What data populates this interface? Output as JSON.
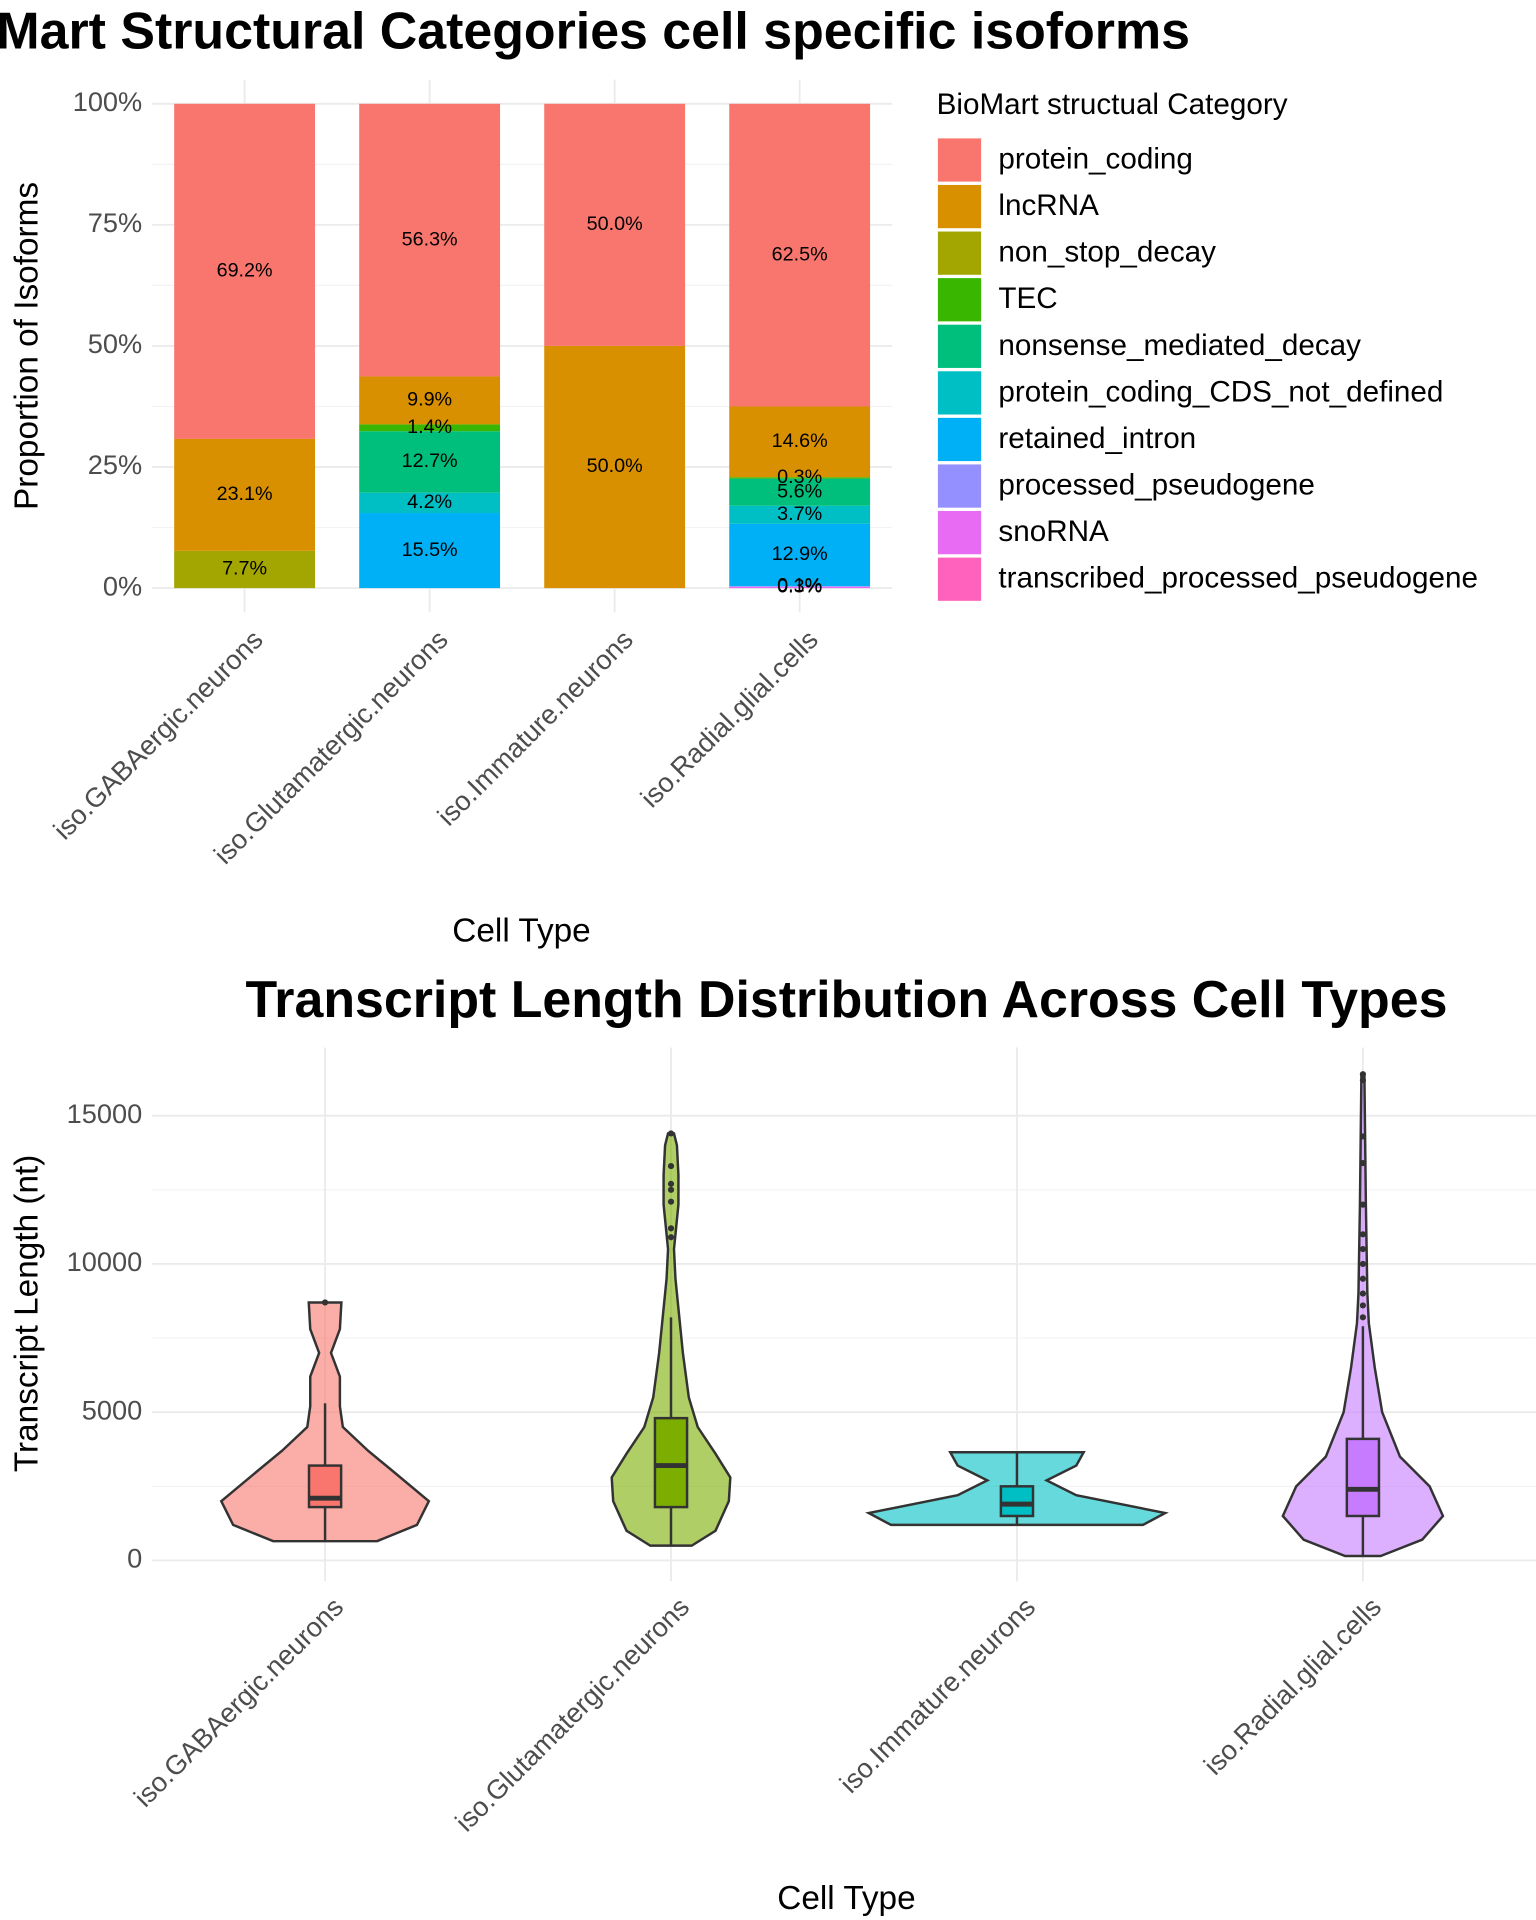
{
  "chart_data": [
    {
      "type": "stacked_bar",
      "title": "BioMart Structural Categories cell specific isoforms",
      "x_label": "Cell Type",
      "y_label": "Proportion of Isoforms",
      "legend_title": "BioMart structual Category",
      "legend_position": "right",
      "grid": true,
      "categories": [
        "iso.GABAergic.neurons",
        "iso.Glutamatergic.neurons",
        "iso.Immature.neurons",
        "iso.Radial.glial.cells"
      ],
      "ylim": [
        -5,
        105
      ],
      "yticks": [
        {
          "value": 0,
          "label": "0%"
        },
        {
          "value": 25,
          "label": "25%"
        },
        {
          "value": 50,
          "label": "50%"
        },
        {
          "value": 75,
          "label": "75%"
        },
        {
          "value": 100,
          "label": "100%"
        }
      ],
      "series": [
        {
          "name": "protein_coding",
          "color": "#F8766D",
          "values": [
            69.2,
            56.3,
            50.0,
            62.5
          ],
          "value_labels": [
            "69.2%",
            "56.3%",
            "50.0%",
            "62.5%"
          ]
        },
        {
          "name": "lncRNA",
          "color": "#D89000",
          "values": [
            23.1,
            9.9,
            50.0,
            14.6
          ],
          "value_labels": [
            "23.1%",
            "9.9%",
            "50.0%",
            "14.6%"
          ]
        },
        {
          "name": "non_stop_decay",
          "color": "#A3A500",
          "values": [
            7.7,
            null,
            null,
            null
          ],
          "value_labels": [
            "7.7%",
            null,
            null,
            null
          ]
        },
        {
          "name": "TEC",
          "color": "#39B600",
          "values": [
            null,
            1.4,
            null,
            0.3
          ],
          "value_labels": [
            null,
            "1.4%",
            null,
            "0.3%"
          ]
        },
        {
          "name": "nonsense_mediated_decay",
          "color": "#00BF7D",
          "values": [
            null,
            12.7,
            null,
            5.6
          ],
          "value_labels": [
            null,
            "12.7%",
            null,
            "5.6%"
          ]
        },
        {
          "name": "protein_coding_CDS_not_defined",
          "color": "#00BFC4",
          "values": [
            null,
            4.2,
            null,
            3.7
          ],
          "value_labels": [
            null,
            "4.2%",
            null,
            "3.7%"
          ]
        },
        {
          "name": "retained_intron",
          "color": "#00B0F6",
          "values": [
            null,
            15.5,
            null,
            12.9
          ],
          "value_labels": [
            null,
            "15.5%",
            null,
            "12.9%"
          ]
        },
        {
          "name": "processed_pseudogene",
          "color": "#9590FF",
          "values": [
            null,
            null,
            null,
            0.1
          ],
          "value_labels": [
            null,
            null,
            null,
            "0.1%"
          ]
        },
        {
          "name": "snoRNA",
          "color": "#E76BF3",
          "values": [
            null,
            null,
            null,
            0.3
          ],
          "value_labels": [
            null,
            null,
            null,
            "0.3%"
          ]
        },
        {
          "name": "transcribed_processed_pseudogene",
          "color": "#FF62BC",
          "values": [
            null,
            null,
            null,
            null
          ],
          "value_labels": [
            null,
            null,
            null,
            null
          ]
        }
      ]
    },
    {
      "type": "violin",
      "title": "Transcript Length Distribution Across Cell Types",
      "x_label": "Cell Type",
      "y_label": "Transcript Length (nt)",
      "grid": true,
      "categories": [
        "iso.GABAergic.neurons",
        "iso.Glutamatergic.neurons",
        "iso.Immature.neurons",
        "iso.Radial.glial.cells"
      ],
      "colors": [
        "#F8766D",
        "#7CAE00",
        "#00BFC4",
        "#C77CFF"
      ],
      "ylim": [
        -700,
        17300
      ],
      "yticks": [
        0,
        5000,
        10000,
        15000
      ],
      "density": [
        {
          "y": [
            650,
            1200,
            2000,
            3000,
            3700,
            4500,
            5200,
            6200,
            7000,
            7800,
            8700
          ],
          "width": [
            0.35,
            0.62,
            0.7,
            0.46,
            0.29,
            0.12,
            0.1,
            0.1,
            0.04,
            0.1,
            0.11
          ]
        },
        {
          "y": [
            500,
            1000,
            2000,
            2800,
            3600,
            4500,
            5500,
            7000,
            8000,
            9500,
            10500,
            12000,
            13000,
            14000,
            14400
          ],
          "width": [
            0.14,
            0.3,
            0.39,
            0.4,
            0.3,
            0.18,
            0.12,
            0.08,
            0.06,
            0.03,
            0.02,
            0.05,
            0.05,
            0.04,
            0.02
          ]
        },
        {
          "y": [
            1200,
            1600,
            2200,
            2700,
            3200,
            3650
          ],
          "width": [
            0.85,
            1.0,
            0.4,
            0.2,
            0.4,
            0.45
          ]
        },
        {
          "y": [
            150,
            700,
            1500,
            2500,
            3500,
            5000,
            6500,
            8000,
            9000,
            12000,
            16400
          ],
          "width": [
            0.12,
            0.4,
            0.54,
            0.45,
            0.25,
            0.13,
            0.08,
            0.04,
            0.03,
            0.02,
            0.01
          ]
        }
      ],
      "whisker_low": [
        650,
        500,
        1200,
        150
      ],
      "q1": [
        1800,
        1800,
        1500,
        1500
      ],
      "median": [
        2100,
        3200,
        1900,
        2400
      ],
      "q3": [
        3200,
        4800,
        2500,
        4100
      ],
      "whisker_high": [
        5300,
        8200,
        3650,
        7900
      ],
      "outliers": [
        [
          8700
        ],
        [
          10900,
          11200,
          12100,
          12500,
          12700,
          13300,
          14400
        ],
        [],
        [
          8200,
          8600,
          9000,
          9500,
          10000,
          10500,
          11000,
          12000,
          13400,
          14300,
          16200,
          16400
        ]
      ]
    }
  ]
}
